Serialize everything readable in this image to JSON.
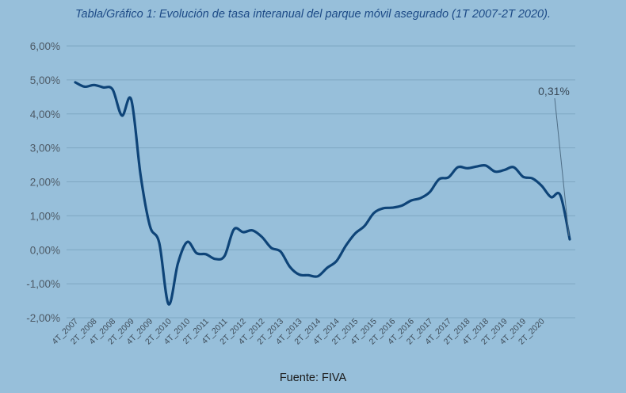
{
  "title": "Tabla/Gráfico 1: Evolución de tasa interanual del parque móvil asegurado (1T 2007-2T 2020).",
  "source": "Fuente: FIVA",
  "colors": {
    "background": "#97bfda",
    "line": "#0e4478",
    "grid": "#7ea7c2",
    "title": "#1c4a86"
  },
  "chart_data": {
    "type": "line",
    "title": "Tabla/Gráfico 1: Evolución de tasa interanual del parque móvil asegurado (1T 2007-2T 2020).",
    "xlabel": "",
    "ylabel": "",
    "ylim": [
      -2,
      6
    ],
    "yticks": [
      "6,00%",
      "5,00%",
      "4,00%",
      "3,00%",
      "2,00%",
      "1,00%",
      "0,00%",
      "-1,00%",
      "-2,00%"
    ],
    "ytick_values": [
      6,
      5,
      4,
      3,
      2,
      1,
      0,
      -1,
      -2
    ],
    "grid": true,
    "legend": "none",
    "xticks": [
      "4T_2007",
      "2T_2008",
      "4T_2008",
      "2T_2009",
      "4T_2009",
      "2T_2010",
      "4T_2010",
      "2T_2011",
      "4T_2011",
      "2T_2012",
      "4T_2012",
      "2T_2013",
      "4T_2013",
      "2T_2014",
      "4T_2014",
      "2T_2015",
      "4T_2015",
      "2T_2016",
      "4T_2016",
      "2T_2017",
      "4T_2017",
      "2T_2018",
      "4T_2018",
      "2T_2019",
      "4T_2019",
      "2T_2020"
    ],
    "series": [
      {
        "values": [
          4.93,
          4.8,
          4.85,
          4.78,
          4.72,
          3.95,
          4.42,
          2.2,
          0.7,
          0.2,
          -1.6,
          -0.4,
          0.23,
          -0.1,
          -0.13,
          -0.27,
          -0.18,
          0.6,
          0.52,
          0.57,
          0.38,
          0.06,
          -0.05,
          -0.5,
          -0.73,
          -0.75,
          -0.78,
          -0.53,
          -0.33,
          0.12,
          0.48,
          0.7,
          1.08,
          1.22,
          1.24,
          1.3,
          1.45,
          1.52,
          1.7,
          2.08,
          2.13,
          2.43,
          2.4,
          2.45,
          2.48,
          2.3,
          2.35,
          2.43,
          2.15,
          2.1,
          1.88,
          1.55,
          1.6,
          0.31
        ]
      }
    ],
    "annotations": [
      {
        "text": "0,31%",
        "value": 0.31
      }
    ]
  }
}
